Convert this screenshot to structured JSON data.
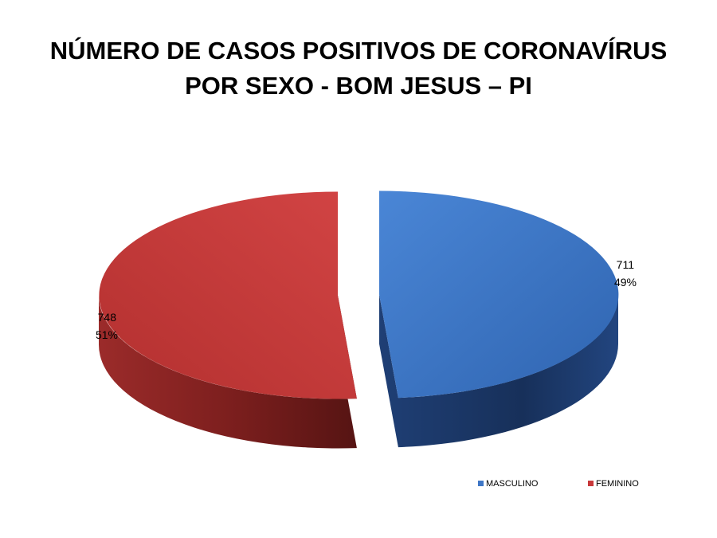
{
  "chart_data": {
    "type": "pie",
    "title_lines": [
      "NÚMERO DE CASOS POSITIVOS DE CORONAVÍRUS",
      "POR SEXO  - BOM JESUS – PI"
    ],
    "categories": [
      "MASCULINO",
      "FEMININO"
    ],
    "values": [
      711,
      748
    ],
    "percent_labels": [
      "49%",
      "51%"
    ],
    "colors": [
      "#3e76c6",
      "#c8383a"
    ],
    "exploded": true,
    "three_d": true,
    "legend_position": "bottom-right"
  }
}
